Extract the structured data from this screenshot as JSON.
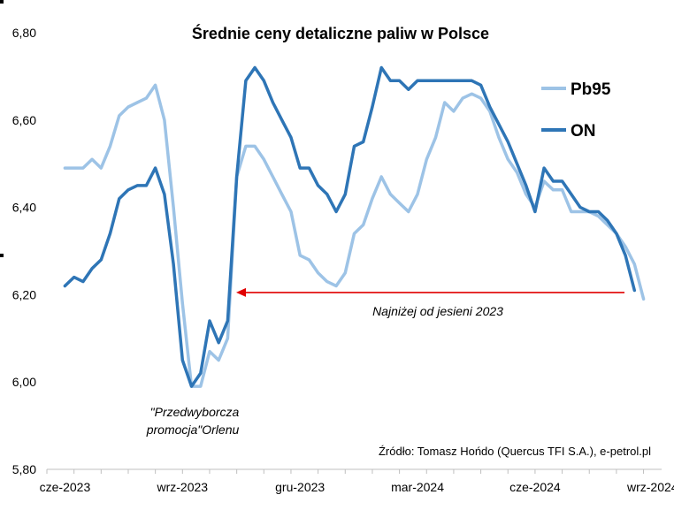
{
  "chart_data": {
    "type": "line",
    "title": "Średnie ceny detaliczne paliw w Polsce",
    "xlabel": "",
    "ylabel": "",
    "ylim": [
      5.8,
      6.8
    ],
    "yticks": [
      5.8,
      6.0,
      6.2,
      6.4,
      6.6,
      6.8
    ],
    "ytick_labels": [
      "5,80",
      "6,00",
      "6,20",
      "6,40",
      "6,60",
      "6,80"
    ],
    "x_tick_labels": [
      "cze-2023",
      "wrz-2023",
      "gru-2023",
      "mar-2024",
      "cze-2024",
      "wrz-2024"
    ],
    "x_tick_positions": [
      0,
      13,
      26,
      39,
      52,
      65
    ],
    "x_range": [
      -2,
      66
    ],
    "grid": false,
    "legend": "right",
    "series": [
      {
        "name": "Pb95",
        "color": "#9DC3E6",
        "values": [
          6.49,
          6.49,
          6.49,
          6.51,
          6.49,
          6.54,
          6.61,
          6.63,
          6.64,
          6.65,
          6.68,
          6.6,
          6.4,
          6.18,
          5.99,
          5.99,
          6.07,
          6.05,
          6.1,
          6.47,
          6.54,
          6.54,
          6.51,
          6.47,
          6.43,
          6.39,
          6.29,
          6.28,
          6.25,
          6.23,
          6.22,
          6.25,
          6.34,
          6.36,
          6.42,
          6.47,
          6.43,
          6.41,
          6.39,
          6.43,
          6.51,
          6.56,
          6.64,
          6.62,
          6.65,
          6.66,
          6.65,
          6.62,
          6.56,
          6.51,
          6.48,
          6.43,
          6.4,
          6.46,
          6.44,
          6.44,
          6.39,
          6.39,
          6.39,
          6.38,
          6.36,
          6.34,
          6.31,
          6.27,
          6.19
        ]
      },
      {
        "name": "ON",
        "color": "#2E75B6",
        "values": [
          6.22,
          6.24,
          6.23,
          6.26,
          6.28,
          6.34,
          6.42,
          6.44,
          6.45,
          6.45,
          6.49,
          6.43,
          6.27,
          6.05,
          5.99,
          6.02,
          6.14,
          6.09,
          6.14,
          6.47,
          6.69,
          6.72,
          6.69,
          6.64,
          6.6,
          6.56,
          6.49,
          6.49,
          6.45,
          6.43,
          6.39,
          6.43,
          6.54,
          6.55,
          6.63,
          6.72,
          6.69,
          6.69,
          6.67,
          6.69,
          6.69,
          6.69,
          6.69,
          6.69,
          6.69,
          6.69,
          6.68,
          6.63,
          6.59,
          6.55,
          6.5,
          6.45,
          6.39,
          6.49,
          6.46,
          6.46,
          6.43,
          6.4,
          6.39,
          6.39,
          6.37,
          6.34,
          6.29,
          6.21
        ]
      }
    ],
    "annotations": {
      "arrow": {
        "label": "Najniżej od jesieni 2023",
        "from": [
          64,
          6.205
        ],
        "to": [
          18.6,
          6.205
        ],
        "color": "#E00000"
      },
      "promo_line1": "\"Przedwyborcza",
      "promo_line2": "promocja\"Orlenu",
      "source": "Źródło: Tomasz Hońdo (Quercus TFI S.A.), e-petrol.pl"
    }
  }
}
